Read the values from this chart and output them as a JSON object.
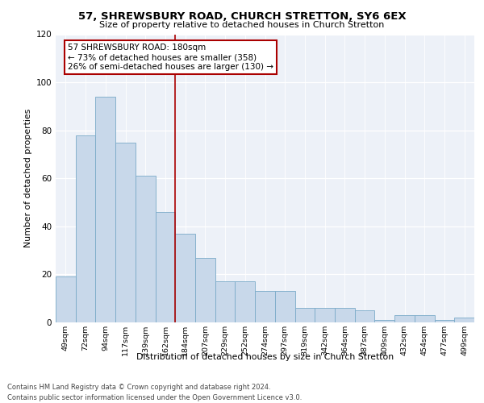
{
  "title": "57, SHREWSBURY ROAD, CHURCH STRETTON, SY6 6EX",
  "subtitle": "Size of property relative to detached houses in Church Stretton",
  "xlabel": "Distribution of detached houses by size in Church Stretton",
  "ylabel": "Number of detached properties",
  "bar_labels": [
    "49sqm",
    "72sqm",
    "94sqm",
    "117sqm",
    "139sqm",
    "162sqm",
    "184sqm",
    "207sqm",
    "229sqm",
    "252sqm",
    "274sqm",
    "297sqm",
    "319sqm",
    "342sqm",
    "364sqm",
    "387sqm",
    "409sqm",
    "432sqm",
    "454sqm",
    "477sqm",
    "499sqm"
  ],
  "bar_heights": [
    19,
    78,
    94,
    75,
    61,
    46,
    37,
    27,
    17,
    17,
    13,
    13,
    6,
    6,
    6,
    5,
    1,
    3,
    3,
    1,
    2
  ],
  "vline_label": "184sqm",
  "annotation_text": "57 SHREWSBURY ROAD: 180sqm\n← 73% of detached houses are smaller (358)\n26% of semi-detached houses are larger (130) →",
  "bar_color": "#c8d8ea",
  "bar_edge_color": "#7aaac8",
  "vline_color": "#aa0000",
  "annotation_box_edgecolor": "#aa0000",
  "background_color": "#edf1f8",
  "ylim": [
    0,
    120
  ],
  "yticks": [
    0,
    20,
    40,
    60,
    80,
    100,
    120
  ],
  "footer_line1": "Contains HM Land Registry data © Crown copyright and database right 2024.",
  "footer_line2": "Contains public sector information licensed under the Open Government Licence v3.0."
}
